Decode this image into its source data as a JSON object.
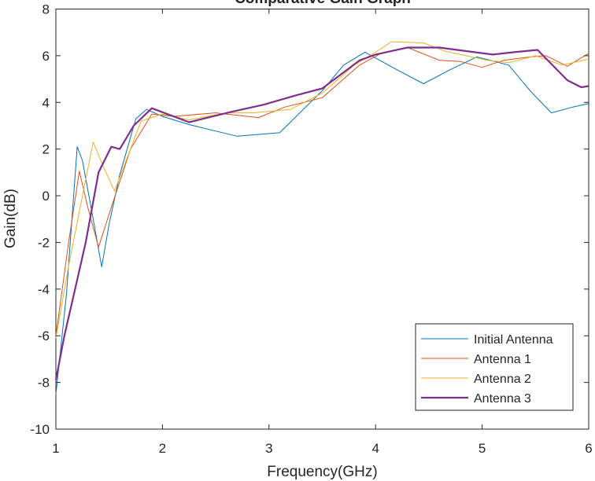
{
  "chart_data": {
    "type": "line",
    "title": "Comparative Gain Graph",
    "xlabel": "Frequency(GHz)",
    "ylabel": "Gain(dB)",
    "xlim": [
      1,
      6
    ],
    "ylim": [
      -10,
      8
    ],
    "xticks": [
      1,
      2,
      3,
      4,
      5,
      6
    ],
    "yticks": [
      -10,
      -8,
      -6,
      -4,
      -2,
      0,
      2,
      4,
      6,
      8
    ],
    "grid": false,
    "legend_position": "bottom-right",
    "series": [
      {
        "name": "Initial Antenna",
        "color": "#0072BD",
        "line_width": 1,
        "points": [
          [
            1.0,
            -8.5
          ],
          [
            1.1,
            -4.2
          ],
          [
            1.2,
            2.1
          ],
          [
            1.25,
            1.5
          ],
          [
            1.35,
            -1.0
          ],
          [
            1.43,
            -3.05
          ],
          [
            1.5,
            -1.2
          ],
          [
            1.6,
            0.9
          ],
          [
            1.75,
            3.3
          ],
          [
            1.85,
            3.7
          ],
          [
            2.0,
            3.4
          ],
          [
            2.25,
            3.05
          ],
          [
            2.7,
            2.55
          ],
          [
            3.1,
            2.7
          ],
          [
            3.5,
            4.5
          ],
          [
            3.7,
            5.6
          ],
          [
            3.9,
            6.15
          ],
          [
            4.2,
            5.4
          ],
          [
            4.45,
            4.8
          ],
          [
            4.7,
            5.4
          ],
          [
            4.95,
            5.95
          ],
          [
            5.25,
            5.6
          ],
          [
            5.45,
            4.5
          ],
          [
            5.65,
            3.55
          ],
          [
            5.85,
            3.8
          ],
          [
            6.0,
            3.95
          ]
        ]
      },
      {
        "name": "Antenna 1",
        "color": "#D95319",
        "line_width": 1,
        "points": [
          [
            1.0,
            -6.0
          ],
          [
            1.12,
            -2.0
          ],
          [
            1.22,
            1.05
          ],
          [
            1.3,
            -0.5
          ],
          [
            1.4,
            -2.2
          ],
          [
            1.52,
            -0.5
          ],
          [
            1.7,
            2.0
          ],
          [
            1.9,
            3.5
          ],
          [
            2.1,
            3.4
          ],
          [
            2.5,
            3.55
          ],
          [
            2.9,
            3.35
          ],
          [
            3.15,
            3.8
          ],
          [
            3.5,
            4.2
          ],
          [
            3.85,
            5.6
          ],
          [
            4.05,
            6.1
          ],
          [
            4.3,
            6.35
          ],
          [
            4.6,
            5.8
          ],
          [
            4.8,
            5.75
          ],
          [
            5.0,
            5.5
          ],
          [
            5.2,
            5.8
          ],
          [
            5.45,
            5.95
          ],
          [
            5.6,
            6.0
          ],
          [
            5.8,
            5.55
          ],
          [
            6.0,
            6.1
          ]
        ]
      },
      {
        "name": "Antenna 2",
        "color": "#EDB120",
        "line_width": 1,
        "points": [
          [
            1.0,
            -6.1
          ],
          [
            1.12,
            -3.0
          ],
          [
            1.25,
            0.0
          ],
          [
            1.35,
            2.3
          ],
          [
            1.45,
            1.2
          ],
          [
            1.55,
            0.2
          ],
          [
            1.65,
            1.4
          ],
          [
            1.8,
            3.2
          ],
          [
            2.0,
            3.5
          ],
          [
            2.25,
            3.25
          ],
          [
            2.6,
            3.55
          ],
          [
            2.85,
            3.55
          ],
          [
            3.2,
            3.7
          ],
          [
            3.5,
            4.4
          ],
          [
            3.8,
            5.6
          ],
          [
            4.05,
            6.3
          ],
          [
            4.15,
            6.6
          ],
          [
            4.45,
            6.55
          ],
          [
            4.65,
            6.2
          ],
          [
            5.05,
            5.8
          ],
          [
            5.25,
            5.7
          ],
          [
            5.5,
            6.0
          ],
          [
            5.75,
            5.6
          ],
          [
            6.0,
            5.85
          ]
        ]
      },
      {
        "name": "Antenna 3",
        "color": "#7E2F8E",
        "line_width": 2.2,
        "points": [
          [
            1.0,
            -7.9
          ],
          [
            1.08,
            -6.0
          ],
          [
            1.2,
            -3.6
          ],
          [
            1.28,
            -2.0
          ],
          [
            1.4,
            1.0
          ],
          [
            1.52,
            2.1
          ],
          [
            1.6,
            2.0
          ],
          [
            1.73,
            3.0
          ],
          [
            1.9,
            3.75
          ],
          [
            2.25,
            3.15
          ],
          [
            2.65,
            3.6
          ],
          [
            2.95,
            3.9
          ],
          [
            3.25,
            4.3
          ],
          [
            3.5,
            4.6
          ],
          [
            3.85,
            5.8
          ],
          [
            4.0,
            6.05
          ],
          [
            4.3,
            6.35
          ],
          [
            4.6,
            6.35
          ],
          [
            4.85,
            6.2
          ],
          [
            5.1,
            6.05
          ],
          [
            5.3,
            6.15
          ],
          [
            5.52,
            6.25
          ],
          [
            5.8,
            4.95
          ],
          [
            5.93,
            4.65
          ],
          [
            6.0,
            4.7
          ]
        ]
      }
    ]
  }
}
